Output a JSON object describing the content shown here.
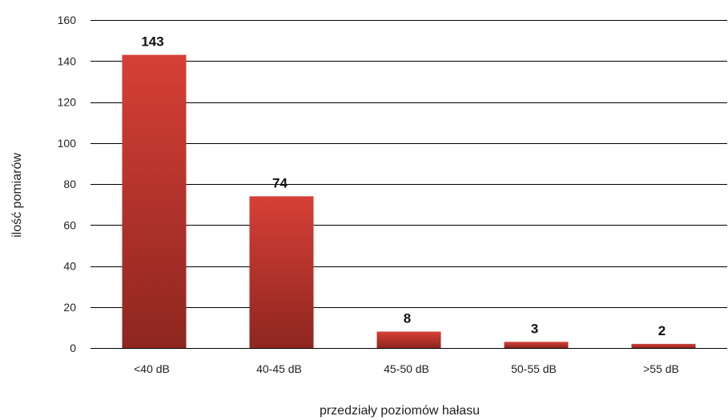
{
  "chart_data": {
    "type": "bar",
    "categories": [
      "<40 dB",
      "40-45 dB",
      "45-50 dB",
      "50-55 dB",
      ">55 dB"
    ],
    "values": [
      143,
      74,
      8,
      3,
      2
    ],
    "data_labels": [
      "143",
      "74",
      "8",
      "3",
      "2"
    ],
    "xlabel": "przedziały poziomów hałasu",
    "ylabel": "ilość pomiarów",
    "ylim": [
      0,
      160
    ],
    "yticks": [
      0,
      20,
      40,
      60,
      80,
      100,
      120,
      140,
      160
    ],
    "grid": true,
    "legend": "none",
    "bar_color": "#c0392f",
    "bar_color_dark": "#8e2620"
  }
}
